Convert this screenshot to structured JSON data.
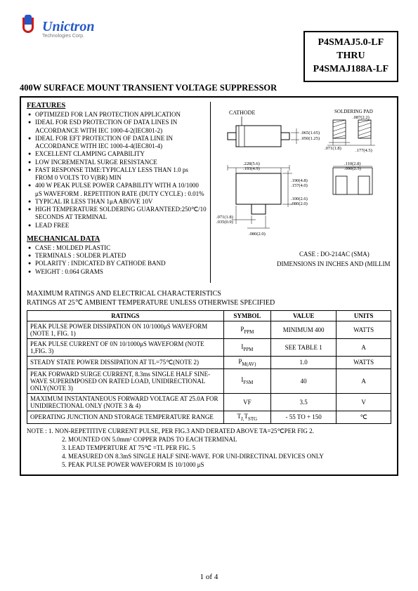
{
  "logo": {
    "name": "Unictron",
    "sub": "Technologies Corp."
  },
  "partbox": {
    "line1": "P4SMAJ5.0-LF",
    "line2": "THRU",
    "line3": "P4SMAJ188A-LF"
  },
  "heading": "400W SURFACE MOUNT TRANSIENT VOLTAGE SUPPRESSOR",
  "features": {
    "title": "FEATURES",
    "items": [
      "OPTIMIZED FOR LAN PROTECTION APPLICATION",
      "IDEAL FOR ESD PROTECTION OF DATA LINES IN ACCORDANCE WITH IEC 1000-4-2(IEC801-2)",
      "IDEAL FOR EFT PROTECTION OF DATA LINE IN ACCORDANCE WITH IEC 1000-4-4(IEC801-4)",
      "EXCELLENT CLAMPING CAPABILITY",
      "LOW INCREMENTAL SURGE RESISTANCE",
      "FAST RESPONSE TIME:TYPICALLY LESS THAN 1.0 ps FROM 0 VOLTS TO V(BR) MIN",
      "400 W PEAK PULSE POWER CAPABILITY WITH A 10/1000 μS WAVEFORM . REPETITION RATE (DUTY CYCLE) : 0.01%",
      "TYPICAL IR LESS THAN 1μA ABOVE 10V",
      "HIGH TEMPERATURE SOLDERING GUARANTEED:250℃/10 SECONDS AT TERMINAL",
      "LEAD FREE"
    ]
  },
  "mechanical": {
    "title": "MECHANICAL DATA",
    "items": [
      "CASE : MOLDED PLASTIC",
      "TERMINALS : SOLDER PLATED",
      "POLARITY : INDICATED BY CATHODE BAND",
      "WEIGHT : 0.064 GRAMS"
    ]
  },
  "diagram": {
    "cathode_label": "CATHODE",
    "soldering_label": "SOLDERING PAD",
    "case_line1": "CASE : DO-214AC (SMA)",
    "case_line2": "DIMENSIONS IN INCHES AND (MILLIMETERS)",
    "dims": {
      "d1": ".065(1.65)",
      "d2": ".050(1.25)",
      "d3": ".228(5.6)",
      "d4": ".193(4.9)",
      "d5": ".190(4.8)",
      "d6": ".157(4.0)",
      "d7": ".100(2.6)",
      "d8": ".080(2.0)",
      "d9": ".071(1.8)",
      "d10": ".035(0.9)",
      "d11": ".080(2.0)",
      "p1": ".087(2.2)",
      "p2": ".071(1.8)",
      "p3": ".177(4.5)",
      "p4": ".110(2.8)",
      "p5": ".090(2.3)"
    },
    "colors": {
      "line": "#000000",
      "fill": "#ffffff",
      "hatch": "#000000"
    }
  },
  "ratings_header": {
    "l1": "MAXIMUM RATINGS AND ELECTRICAL CHARACTERISTICS",
    "l2": "RATINGS AT 25℃ AMBIENT TEMPERATURE UNLESS OTHERWISE SPECIFIED"
  },
  "table": {
    "headers": [
      "RATINGS",
      "SYMBOL",
      "VALUE",
      "UNITS"
    ],
    "col_widths": [
      "54%",
      "13%",
      "18%",
      "15%"
    ],
    "rows": [
      {
        "rating": "PEAK PULSE POWER DISSIPATION ON 10/1000μS WAVEFORM (NOTE 1, FIG. 1)",
        "symbol_main": "P",
        "symbol_sub": "PPM",
        "value": "MINIMUM 400",
        "units": "WATTS"
      },
      {
        "rating": "PEAK PULSE CURRENT OF 0N 10/1000μS WAVEFORM (NOTE 1,FIG. 3)",
        "symbol_main": "I",
        "symbol_sub": "PPM",
        "value": "SEE TABLE 1",
        "units": "A"
      },
      {
        "rating": "STEADY STATE POWER DISSIPATION AT TL=75℃(NOTE 2)",
        "symbol_main": "P",
        "symbol_sub": "M(AV)",
        "value": "1.0",
        "units": "WATTS"
      },
      {
        "rating": "PEAK FORWARD SURGE CURRENT, 8.3ms SINGLE HALF SINE-WAVE SUPERIMPOSED ON RATED LOAD, UNIDIRECTIONAL ONLY(NOTE 3)",
        "symbol_main": "I",
        "symbol_sub": "FSM",
        "value": "40",
        "units": "A"
      },
      {
        "rating": "MAXIMUM INSTANTANEOUS FORWARD VOLTAGE AT 25.0A FOR UNIDIRECTIONAL ONLY (NOTE 3 & 4)",
        "symbol_main": "VF",
        "symbol_sub": "",
        "value": "3.5",
        "units": "V"
      },
      {
        "rating": "OPERATING JUNCTION AND STORAGE TEMPERATURE RANGE",
        "symbol_main": "T",
        "symbol_sub": "J,",
        "symbol_main2": "T",
        "symbol_sub2": "STG",
        "value": "- 55 TO + 150",
        "units": "℃"
      }
    ]
  },
  "notes": {
    "lead": "NOTE :",
    "items": [
      "1. NON-REPETITIVE CURRENT PULSE, PER FIG.3 AND DERATED ABOVE TA=25℃PER FIG 2.",
      "2. MOUNTED ON 5.0mm² COPPER PADS TO EACH TERMINAL",
      "3. LEAD TEMPERTURE AT 75℃ =TL PER FIG. 5",
      "4. MEASURED ON 8.3mS SINGLE HALF SINE-WAVE. FOR UNI-DIRECTINAL DEVICES ONLY",
      "5. PEAK PULSE POWER WAVEFORM IS 10/1000 μS"
    ]
  },
  "pagenum": "1 of 4"
}
